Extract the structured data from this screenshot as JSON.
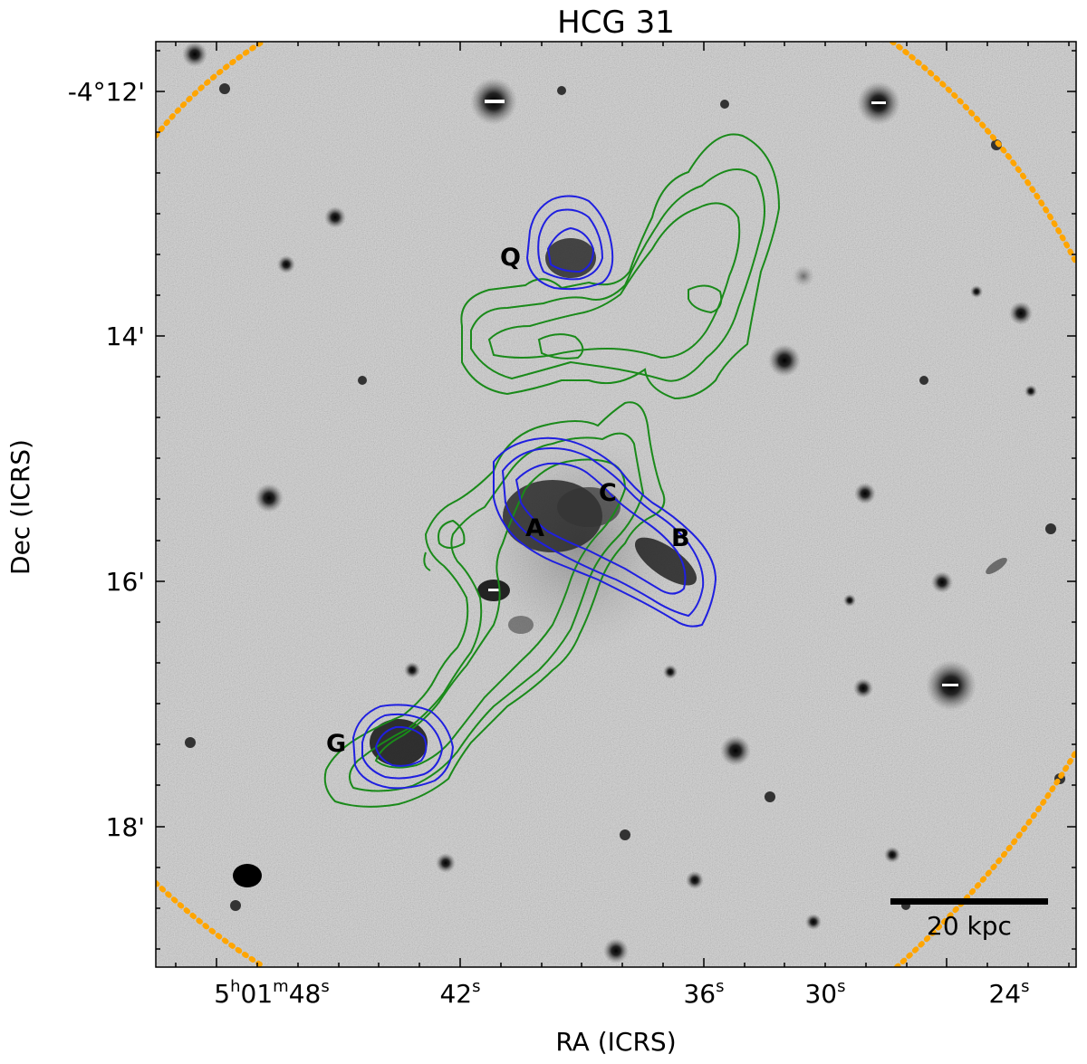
{
  "title": "HCG 31",
  "axes": {
    "xlabel": "RA (ICRS)",
    "ylabel": "Dec (ICRS)",
    "x_ticks": [
      {
        "h": "5",
        "m": "01",
        "s": "48"
      },
      {
        "s": "42"
      },
      {
        "s": "36"
      },
      {
        "s": "30"
      },
      {
        "s": "24"
      }
    ],
    "y_ticks": [
      "-4°12'",
      "14'",
      "16'",
      "18'"
    ]
  },
  "galaxies": [
    {
      "label": "Q"
    },
    {
      "label": "C"
    },
    {
      "label": "A"
    },
    {
      "label": "B"
    },
    {
      "label": "G"
    }
  ],
  "scale_bar": {
    "label": "20 kpc"
  },
  "colors": {
    "background_sky": "#c9c9c9",
    "contour_green": "#1a8a1a",
    "contour_blue": "#1f1fe0",
    "primary_beam_dotted": "#ffa500",
    "beam": "#000000"
  },
  "legend_elements": {
    "beam_ellipse": "beam-icon",
    "primary_beam": "dotted-circle"
  }
}
